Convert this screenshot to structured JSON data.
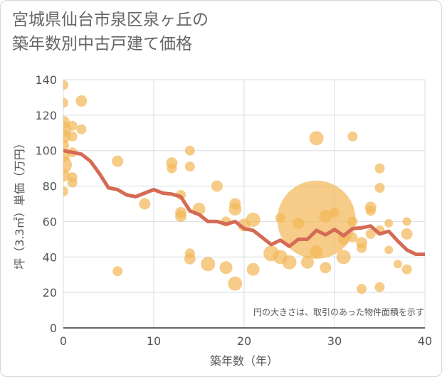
{
  "title_line1": "宮城県仙台市泉区泉ヶ丘の",
  "title_line2": "築年数別中古戸建て価格",
  "chart_data": {
    "type": "scatter",
    "xlabel": "築年数（年）",
    "ylabel": "坪（3.3㎡）単価（万円）",
    "xlim": [
      0,
      40
    ],
    "ylim": [
      0,
      140
    ],
    "x_ticks": [
      "0",
      "10",
      "20",
      "30",
      "40"
    ],
    "y_ticks": [
      "0",
      "20",
      "40",
      "60",
      "80",
      "100",
      "120",
      "140"
    ],
    "grid": true,
    "note": "円の大きさは、取引のあった物件面積を示す",
    "colors": {
      "bubble": "#f2b85a",
      "line": "#d56a55",
      "grid": "#d7dde5"
    },
    "points": [
      {
        "x": 0,
        "y": 137,
        "s": 7
      },
      {
        "x": 0,
        "y": 127,
        "s": 7
      },
      {
        "x": 0,
        "y": 116,
        "s": 9
      },
      {
        "x": 0,
        "y": 112,
        "s": 11
      },
      {
        "x": 0,
        "y": 108,
        "s": 10
      },
      {
        "x": 0,
        "y": 103,
        "s": 8
      },
      {
        "x": 0,
        "y": 97,
        "s": 9
      },
      {
        "x": 0,
        "y": 92,
        "s": 12
      },
      {
        "x": 0,
        "y": 86,
        "s": 9
      },
      {
        "x": 0,
        "y": 77,
        "s": 7
      },
      {
        "x": 1,
        "y": 114,
        "s": 7
      },
      {
        "x": 1,
        "y": 108,
        "s": 7
      },
      {
        "x": 1,
        "y": 99,
        "s": 7
      },
      {
        "x": 1,
        "y": 85,
        "s": 7
      },
      {
        "x": 1,
        "y": 82,
        "s": 7
      },
      {
        "x": 2,
        "y": 128,
        "s": 8
      },
      {
        "x": 2,
        "y": 112,
        "s": 7
      },
      {
        "x": 6,
        "y": 94,
        "s": 8
      },
      {
        "x": 6,
        "y": 32,
        "s": 7
      },
      {
        "x": 9,
        "y": 70,
        "s": 8
      },
      {
        "x": 12,
        "y": 93,
        "s": 8
      },
      {
        "x": 12,
        "y": 90,
        "s": 7
      },
      {
        "x": 13,
        "y": 75,
        "s": 7
      },
      {
        "x": 13,
        "y": 65,
        "s": 8
      },
      {
        "x": 13,
        "y": 63,
        "s": 8
      },
      {
        "x": 14,
        "y": 100,
        "s": 7
      },
      {
        "x": 14,
        "y": 91,
        "s": 7
      },
      {
        "x": 14,
        "y": 42,
        "s": 7
      },
      {
        "x": 14,
        "y": 39,
        "s": 8
      },
      {
        "x": 15,
        "y": 67,
        "s": 9
      },
      {
        "x": 16,
        "y": 36,
        "s": 10
      },
      {
        "x": 17,
        "y": 80,
        "s": 8
      },
      {
        "x": 18,
        "y": 60,
        "s": 7
      },
      {
        "x": 18,
        "y": 34,
        "s": 9
      },
      {
        "x": 19,
        "y": 70,
        "s": 8
      },
      {
        "x": 19,
        "y": 67,
        "s": 9
      },
      {
        "x": 19,
        "y": 25,
        "s": 10
      },
      {
        "x": 20,
        "y": 58,
        "s": 9
      },
      {
        "x": 21,
        "y": 61,
        "s": 10
      },
      {
        "x": 21,
        "y": 33,
        "s": 9
      },
      {
        "x": 23,
        "y": 42,
        "s": 11
      },
      {
        "x": 24,
        "y": 62,
        "s": 7
      },
      {
        "x": 24,
        "y": 40,
        "s": 10
      },
      {
        "x": 25,
        "y": 37,
        "s": 10
      },
      {
        "x": 26,
        "y": 59,
        "s": 8
      },
      {
        "x": 27,
        "y": 37,
        "s": 9
      },
      {
        "x": 28,
        "y": 107,
        "s": 10
      },
      {
        "x": 28,
        "y": 61,
        "s": 55
      },
      {
        "x": 28,
        "y": 43,
        "s": 9
      },
      {
        "x": 29,
        "y": 63,
        "s": 9
      },
      {
        "x": 29,
        "y": 34,
        "s": 8
      },
      {
        "x": 30,
        "y": 65,
        "s": 7
      },
      {
        "x": 31,
        "y": 50,
        "s": 8
      },
      {
        "x": 31,
        "y": 40,
        "s": 10
      },
      {
        "x": 32,
        "y": 108,
        "s": 7
      },
      {
        "x": 32,
        "y": 60,
        "s": 7
      },
      {
        "x": 32,
        "y": 51,
        "s": 7
      },
      {
        "x": 33,
        "y": 48,
        "s": 8
      },
      {
        "x": 33,
        "y": 45,
        "s": 7
      },
      {
        "x": 33,
        "y": 22,
        "s": 7
      },
      {
        "x": 34,
        "y": 68,
        "s": 8
      },
      {
        "x": 34,
        "y": 66,
        "s": 7
      },
      {
        "x": 34,
        "y": 53,
        "s": 7
      },
      {
        "x": 35,
        "y": 90,
        "s": 7
      },
      {
        "x": 35,
        "y": 79,
        "s": 7
      },
      {
        "x": 35,
        "y": 55,
        "s": 7
      },
      {
        "x": 35,
        "y": 23,
        "s": 7
      },
      {
        "x": 36,
        "y": 59,
        "s": 6
      },
      {
        "x": 36,
        "y": 44,
        "s": 6
      },
      {
        "x": 37,
        "y": 36,
        "s": 6
      },
      {
        "x": 38,
        "y": 60,
        "s": 6
      },
      {
        "x": 38,
        "y": 53,
        "s": 8
      },
      {
        "x": 38,
        "y": 33,
        "s": 7
      }
    ],
    "trend": {
      "x": [
        0,
        1,
        2,
        3,
        4,
        5,
        6,
        7,
        8,
        9,
        10,
        11,
        12,
        13,
        14,
        15,
        16,
        17,
        18,
        19,
        20,
        21,
        22,
        23,
        24,
        25,
        26,
        27,
        28,
        29,
        30,
        31,
        32,
        33,
        34,
        35,
        36,
        37,
        38,
        39,
        40
      ],
      "y": [
        100,
        99,
        98,
        94,
        87,
        79,
        78,
        75,
        74,
        76,
        78,
        76,
        75.5,
        74,
        66,
        64,
        60,
        60,
        58.5,
        60,
        56,
        55,
        51,
        47,
        49.5,
        46,
        50,
        50,
        55,
        52.5,
        55.5,
        52,
        56,
        56.5,
        57.5,
        53,
        54.5,
        49,
        44,
        41.5,
        41.5
      ]
    }
  }
}
